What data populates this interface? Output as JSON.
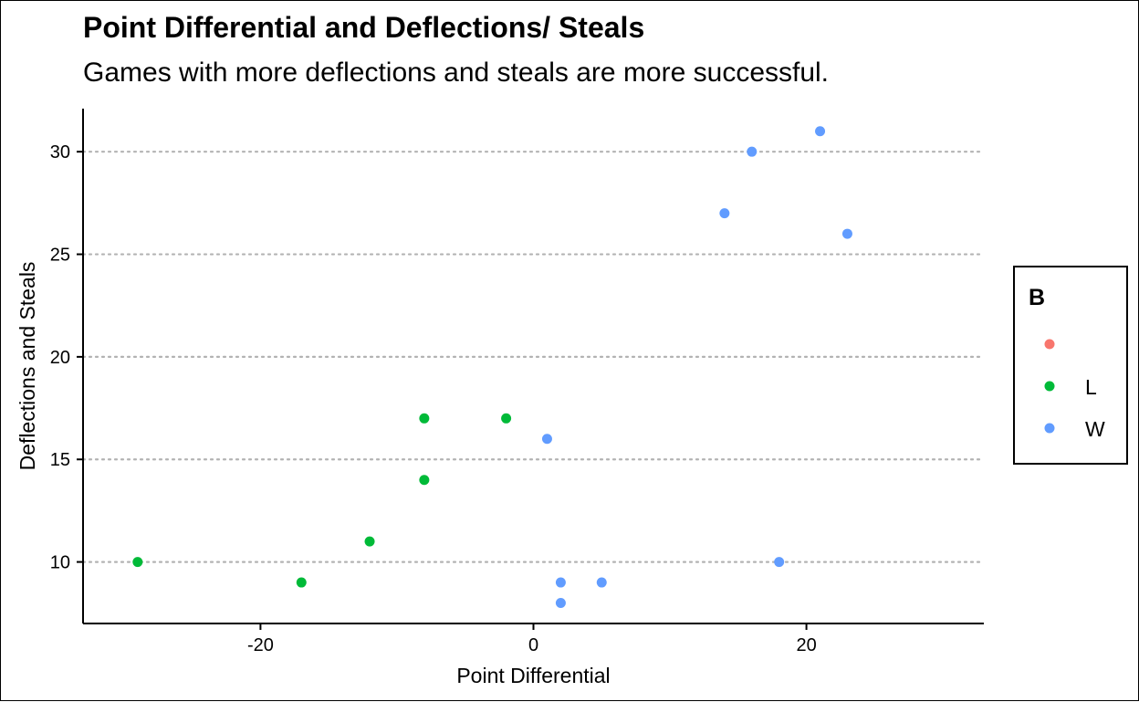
{
  "chart_data": {
    "type": "scatter",
    "title": "Point Differential and Deflections/ Steals",
    "subtitle": "Games with more deflections and steals are more successful.",
    "xlabel": "Point Differential",
    "ylabel": "Deflections and Steals",
    "xlim": [
      -33,
      33
    ],
    "ylim": [
      7.0,
      32.1
    ],
    "x_ticks": [
      -20,
      0,
      20
    ],
    "y_ticks": [
      10,
      15,
      20,
      25,
      30
    ],
    "grid": "horizontal dotted major lines",
    "legend": {
      "title": "B",
      "placement": "right",
      "entries": [
        {
          "label": "",
          "color": "#F8766D"
        },
        {
          "label": "L",
          "color": "#00BA38"
        },
        {
          "label": "W",
          "color": "#619CFF"
        }
      ]
    },
    "series": [
      {
        "name": "L",
        "color": "#00BA38",
        "points": [
          {
            "x": -29,
            "y": 10
          },
          {
            "x": -17,
            "y": 9
          },
          {
            "x": -12,
            "y": 11
          },
          {
            "x": -8,
            "y": 17
          },
          {
            "x": -8,
            "y": 14
          },
          {
            "x": -2,
            "y": 17
          }
        ]
      },
      {
        "name": "W",
        "color": "#619CFF",
        "points": [
          {
            "x": 1,
            "y": 16
          },
          {
            "x": 2,
            "y": 9
          },
          {
            "x": 2,
            "y": 8
          },
          {
            "x": 5,
            "y": 9
          },
          {
            "x": 14,
            "y": 27
          },
          {
            "x": 16,
            "y": 30
          },
          {
            "x": 18,
            "y": 10
          },
          {
            "x": 21,
            "y": 31
          },
          {
            "x": 23,
            "y": 26
          }
        ]
      }
    ]
  }
}
